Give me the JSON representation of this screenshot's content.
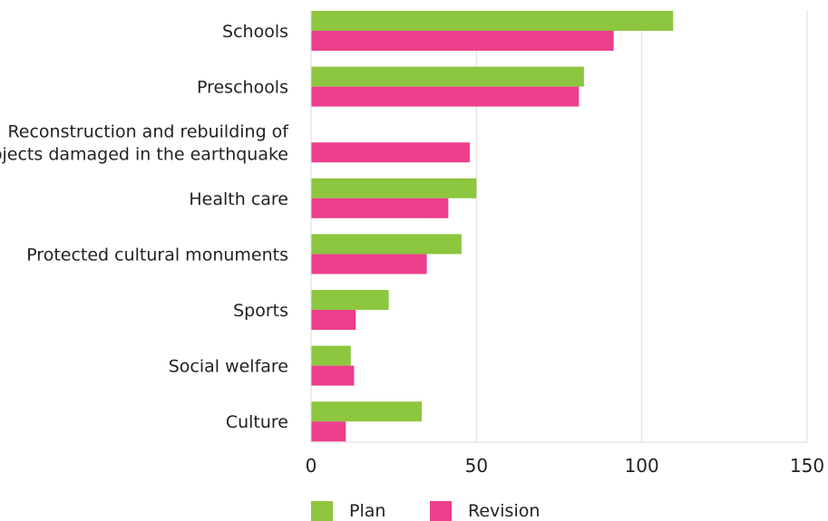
{
  "chart_data": {
    "type": "bar",
    "orientation": "horizontal",
    "categories": [
      [
        "Schools"
      ],
      [
        "Preschools"
      ],
      [
        "Reconstruction and rebuilding of",
        "objects damaged in the earthquake"
      ],
      [
        "Health care"
      ],
      [
        "Protected cultural monuments"
      ],
      [
        "Sports"
      ],
      [
        "Social welfare"
      ],
      [
        "Culture"
      ]
    ],
    "series": [
      {
        "name": "Plan",
        "color": "#8dc63f",
        "values": [
          109.5,
          82.5,
          null,
          50,
          45.5,
          23.5,
          12,
          33.5
        ]
      },
      {
        "name": "Revision",
        "color": "#ec3f8c",
        "values": [
          91.5,
          81,
          48,
          41.5,
          35,
          13.5,
          13,
          10.5
        ]
      }
    ],
    "xlim": [
      0,
      150
    ],
    "xticks": [
      0,
      50,
      100,
      150
    ],
    "grid": true,
    "legend_position": "bottom-left"
  }
}
